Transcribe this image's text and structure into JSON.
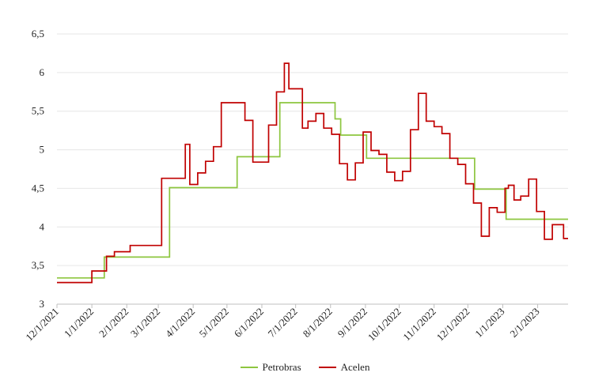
{
  "chart_data": {
    "type": "line",
    "title": "",
    "xlabel": "",
    "ylabel": "",
    "ylim": [
      3,
      6.5
    ],
    "xlim": [
      "2021-12-01",
      "2023-02-28"
    ],
    "yticks": [
      3,
      3.5,
      4,
      4.5,
      5,
      5.5,
      6,
      6.5
    ],
    "ytick_labels": [
      "3",
      "3,5",
      "4",
      "4,5",
      "5",
      "5,5",
      "6",
      "6,5"
    ],
    "xticks": [
      "2021-12-01",
      "2022-01-01",
      "2022-02-01",
      "2022-03-01",
      "2022-04-01",
      "2022-05-01",
      "2022-06-01",
      "2022-07-01",
      "2022-08-01",
      "2022-09-01",
      "2022-10-01",
      "2022-11-01",
      "2022-12-01",
      "2023-01-01",
      "2023-02-01"
    ],
    "xtick_labels": [
      "12/1/2021",
      "1/1/2022",
      "2/1/2022",
      "3/1/2022",
      "4/1/2022",
      "5/1/2022",
      "6/1/2022",
      "7/1/2022",
      "8/1/2022",
      "9/1/2022",
      "10/1/2022",
      "11/1/2022",
      "12/1/2022",
      "1/1/2023",
      "2/1/2023"
    ],
    "grid": "horizontal",
    "legend_position": "bottom",
    "series": [
      {
        "name": "Petrobras",
        "color": "#8dc63f",
        "step": true,
        "points": [
          [
            "2021-12-01",
            3.34
          ],
          [
            "2022-01-12",
            3.61
          ],
          [
            "2022-03-11",
            4.51
          ],
          [
            "2022-05-10",
            4.91
          ],
          [
            "2022-06-17",
            5.61
          ],
          [
            "2022-08-05",
            5.4
          ],
          [
            "2022-08-10",
            5.19
          ],
          [
            "2022-09-02",
            4.89
          ],
          [
            "2022-12-07",
            4.49
          ],
          [
            "2023-01-04",
            4.1
          ],
          [
            "2023-02-28",
            4.1
          ]
        ]
      },
      {
        "name": "Acelen",
        "color": "#c00000",
        "step": true,
        "points": [
          [
            "2021-12-01",
            3.28
          ],
          [
            "2022-01-01",
            3.43
          ],
          [
            "2022-01-14",
            3.62
          ],
          [
            "2022-01-21",
            3.68
          ],
          [
            "2022-02-04",
            3.76
          ],
          [
            "2022-03-04",
            4.63
          ],
          [
            "2022-03-25",
            5.07
          ],
          [
            "2022-03-29",
            4.55
          ],
          [
            "2022-04-05",
            4.7
          ],
          [
            "2022-04-12",
            4.85
          ],
          [
            "2022-04-19",
            5.04
          ],
          [
            "2022-04-26",
            5.61
          ],
          [
            "2022-05-17",
            5.38
          ],
          [
            "2022-05-24",
            4.84
          ],
          [
            "2022-06-07",
            5.32
          ],
          [
            "2022-06-14",
            5.75
          ],
          [
            "2022-06-21",
            6.12
          ],
          [
            "2022-06-25",
            5.79
          ],
          [
            "2022-07-07",
            5.28
          ],
          [
            "2022-07-12",
            5.37
          ],
          [
            "2022-07-19",
            5.47
          ],
          [
            "2022-07-26",
            5.28
          ],
          [
            "2022-08-02",
            5.2
          ],
          [
            "2022-08-09",
            4.82
          ],
          [
            "2022-08-16",
            4.61
          ],
          [
            "2022-08-23",
            4.83
          ],
          [
            "2022-08-30",
            5.23
          ],
          [
            "2022-09-06",
            4.99
          ],
          [
            "2022-09-13",
            4.94
          ],
          [
            "2022-09-20",
            4.71
          ],
          [
            "2022-09-27",
            4.6
          ],
          [
            "2022-10-04",
            4.72
          ],
          [
            "2022-10-11",
            5.26
          ],
          [
            "2022-10-18",
            5.73
          ],
          [
            "2022-10-25",
            5.37
          ],
          [
            "2022-11-01",
            5.3
          ],
          [
            "2022-11-08",
            5.21
          ],
          [
            "2022-11-15",
            4.89
          ],
          [
            "2022-11-22",
            4.81
          ],
          [
            "2022-11-29",
            4.56
          ],
          [
            "2022-12-06",
            4.31
          ],
          [
            "2022-12-13",
            3.88
          ],
          [
            "2022-12-20",
            4.25
          ],
          [
            "2022-12-27",
            4.19
          ],
          [
            "2023-01-03",
            4.5
          ],
          [
            "2023-01-06",
            4.54
          ],
          [
            "2023-01-11",
            4.35
          ],
          [
            "2023-01-17",
            4.4
          ],
          [
            "2023-01-24",
            4.62
          ],
          [
            "2023-01-31",
            4.2
          ],
          [
            "2023-02-07",
            3.84
          ],
          [
            "2023-02-14",
            4.03
          ],
          [
            "2023-02-24",
            3.85
          ],
          [
            "2023-02-28",
            3.85
          ]
        ]
      }
    ]
  }
}
